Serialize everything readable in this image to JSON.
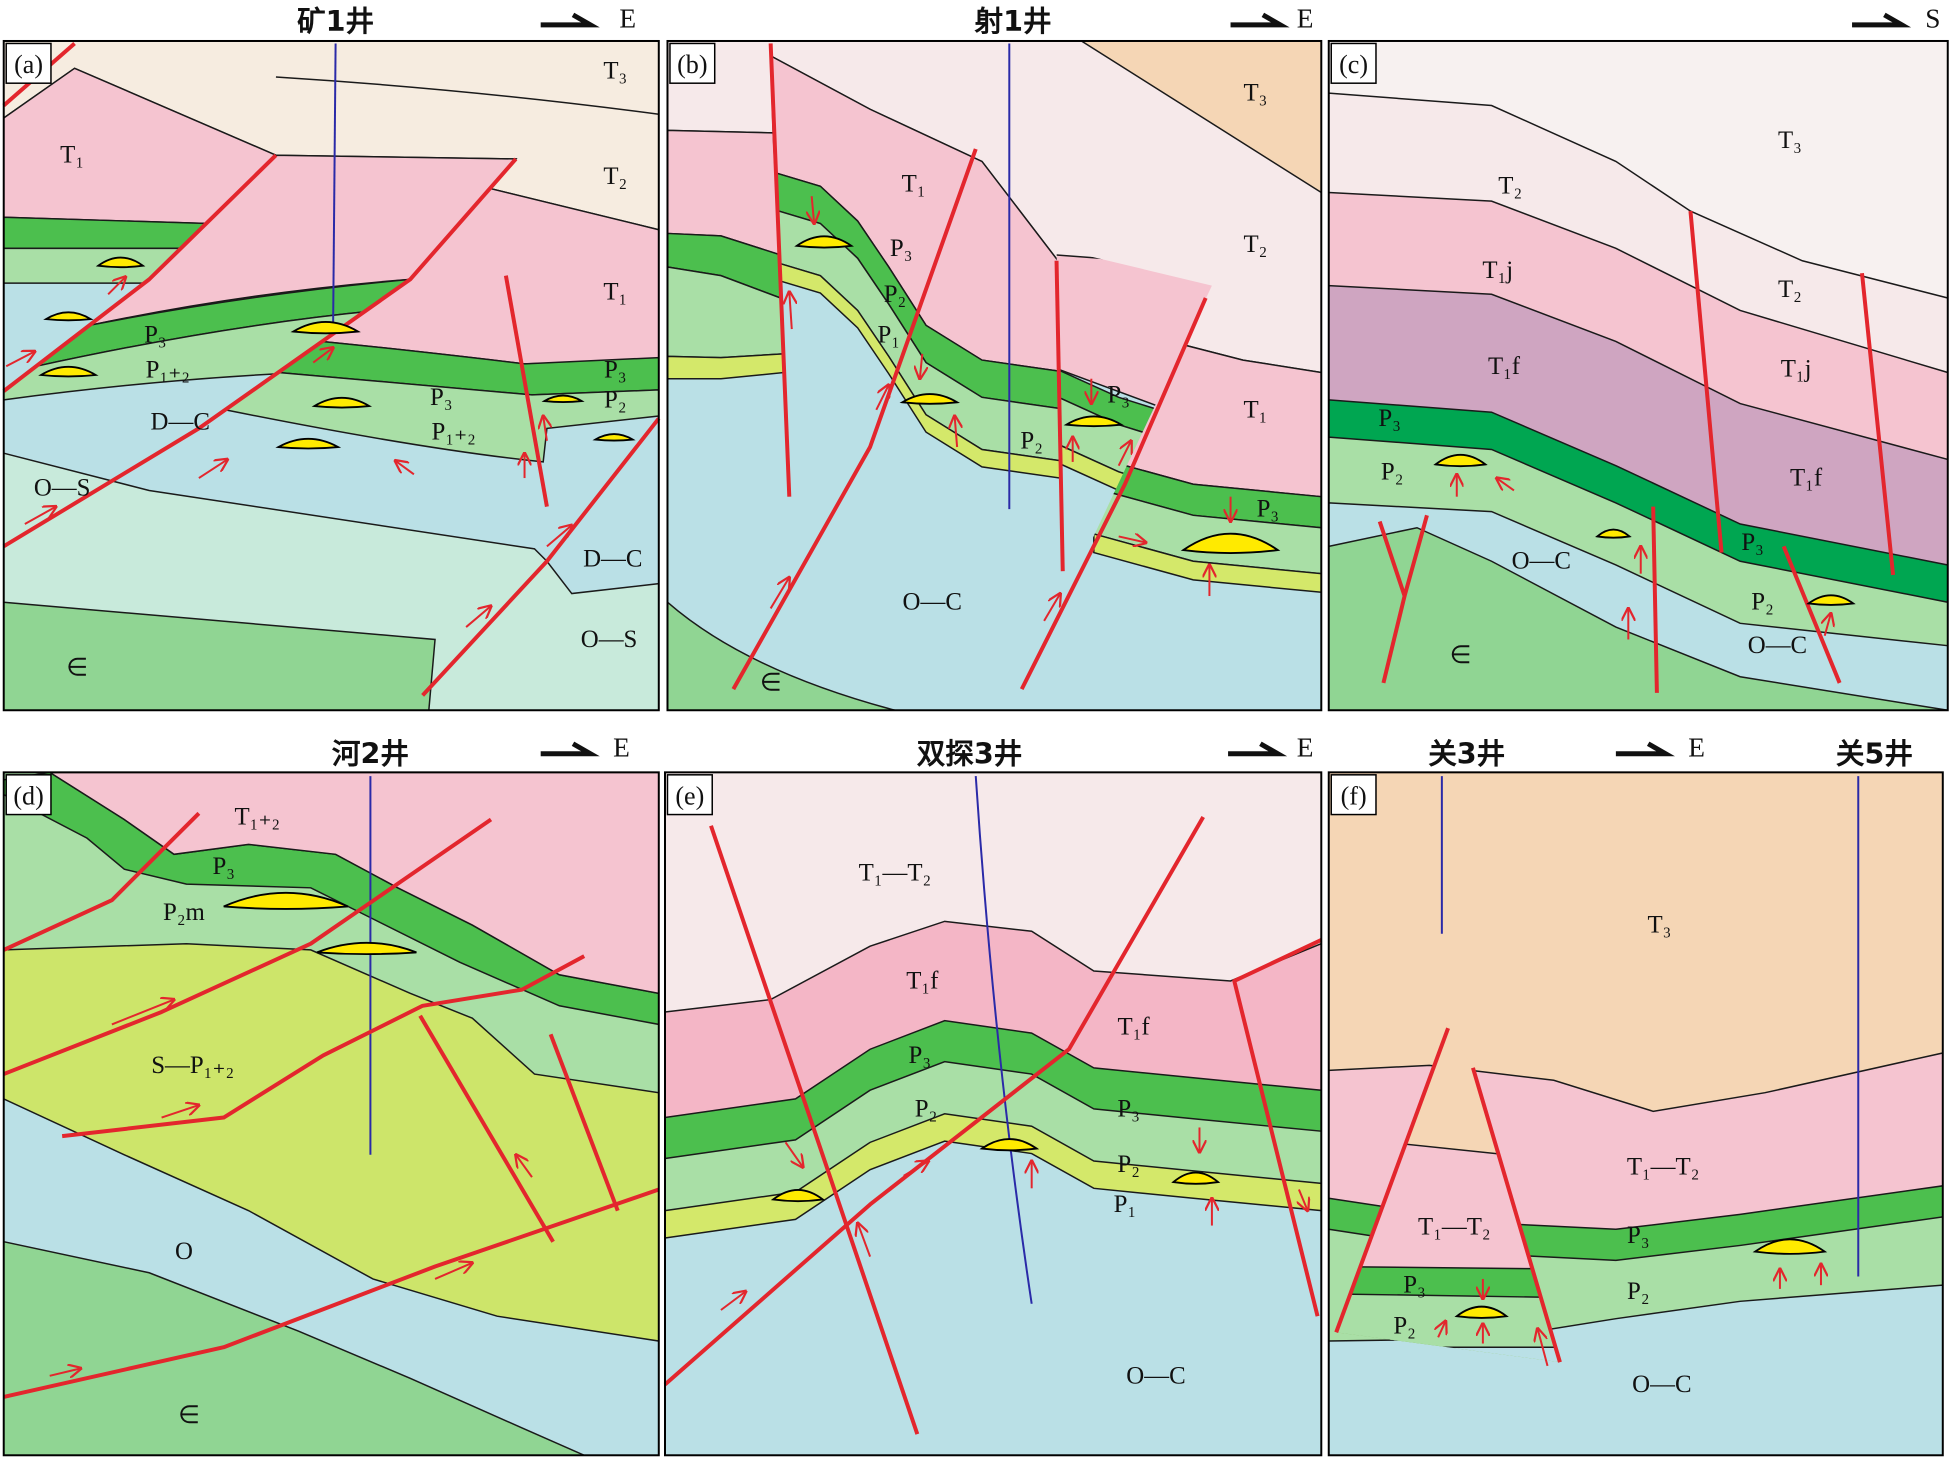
{
  "panels": [
    {
      "label": "(a)",
      "wells": [
        "矿1井"
      ],
      "direction": "E",
      "units": [
        "T₃",
        "T₂",
        "T₁",
        "T₁",
        "P₃",
        "P₁₊₂",
        "D—C",
        "O—S",
        "P₃",
        "P₁₊₂",
        "P₃",
        "P₂",
        "D—C",
        "O—S",
        "∈"
      ]
    },
    {
      "label": "(b)",
      "wells": [
        "射1井"
      ],
      "direction": "E",
      "units": [
        "T₃",
        "T₂",
        "T₁",
        "T₁",
        "P₃",
        "P₂",
        "P₁",
        "P₂",
        "P₃",
        "P₃",
        "O—C",
        "∈"
      ]
    },
    {
      "label": "(c)",
      "direction": "S",
      "units": [
        "T₃",
        "T₂",
        "T₁j",
        "T₁f",
        "P₃",
        "P₂",
        "O—C",
        "T₂",
        "T₁j",
        "T₁f",
        "P₃",
        "P₂",
        "O—C",
        "∈"
      ]
    },
    {
      "label": "(d)",
      "wells": [
        "河2井"
      ],
      "direction": "E",
      "units": [
        "T₁₊₂",
        "P₃",
        "P₂m",
        "S—P₁₊₂",
        "O",
        "∈"
      ]
    },
    {
      "label": "(e)",
      "wells": [
        "双探3井"
      ],
      "direction": "E",
      "units": [
        "T₁—T₂",
        "T₁f",
        "T₁f",
        "P₃",
        "P₂",
        "P₃",
        "P₂",
        "P₁",
        "O—C"
      ]
    },
    {
      "label": "(f)",
      "wells": [
        "关3井",
        "关5井"
      ],
      "direction": "E",
      "units": [
        "T₃",
        "T₁—T₂",
        "T₁—T₂",
        "P₃",
        "P₂",
        "P₃",
        "P₂",
        "O—C"
      ]
    }
  ]
}
